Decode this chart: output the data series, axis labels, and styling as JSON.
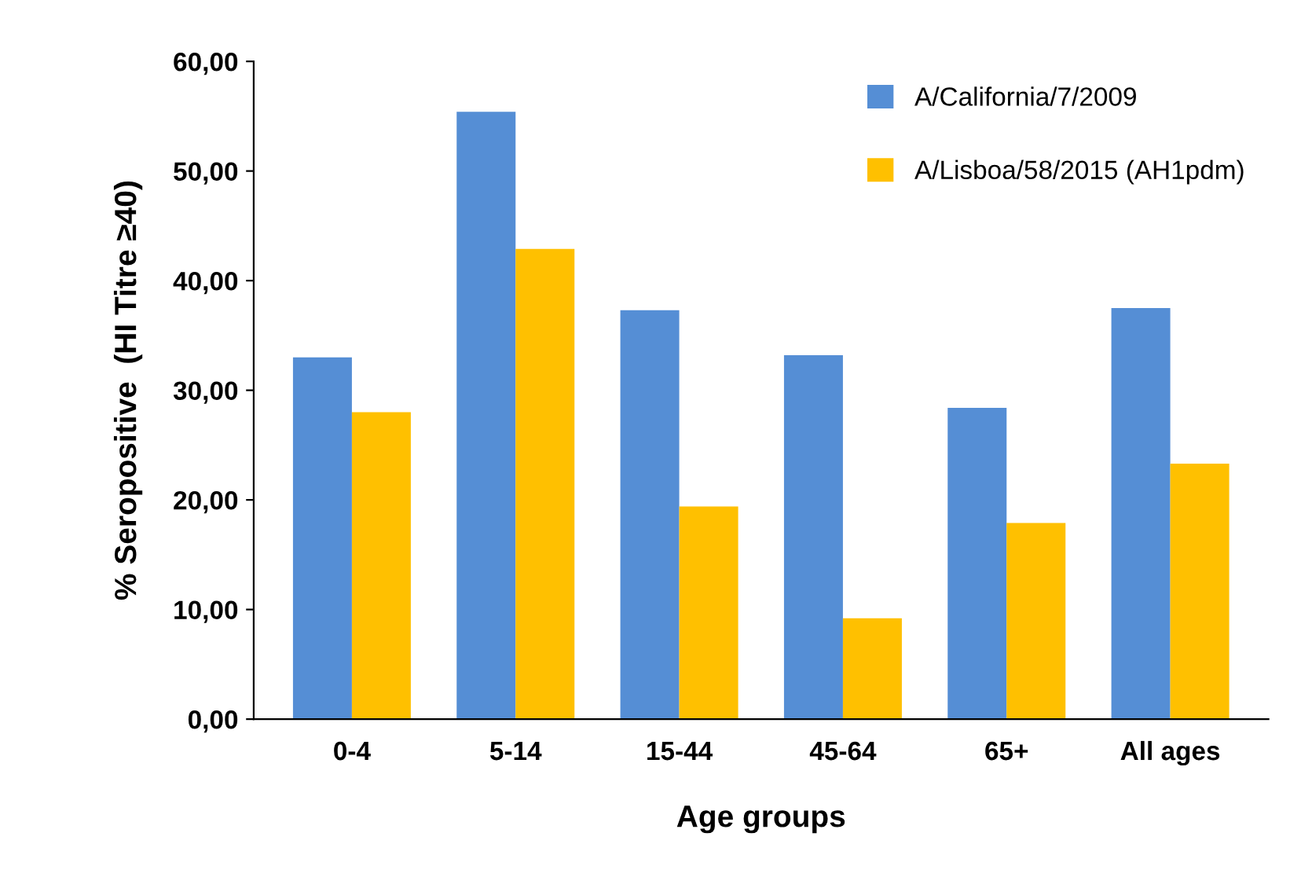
{
  "chart_data": {
    "type": "bar",
    "xlabel": "Age groups",
    "ylabel": "% Seropositive  (HI Titre ≥40)",
    "categories": [
      "0-4",
      "5-14",
      "15-44",
      "45-64",
      "65+",
      "All ages"
    ],
    "series": [
      {
        "name": "A/California/7/2009",
        "color": "#558ed5",
        "values": [
          33.0,
          55.4,
          37.3,
          33.2,
          28.4,
          37.5
        ]
      },
      {
        "name": "A/Lisboa/58/2015 (AH1pdm)",
        "color": "#ffc000",
        "values": [
          28.0,
          42.9,
          19.4,
          9.2,
          17.9,
          23.3
        ]
      }
    ],
    "ylim": [
      0,
      60
    ],
    "yticks": [
      {
        "value": 0,
        "label": "0,00"
      },
      {
        "value": 10,
        "label": "10,00"
      },
      {
        "value": 20,
        "label": "20,00"
      },
      {
        "value": 30,
        "label": "30,00"
      },
      {
        "value": 40,
        "label": "40,00"
      },
      {
        "value": 50,
        "label": "50,00"
      },
      {
        "value": 60,
        "label": "60,00"
      }
    ],
    "grid": false,
    "legend": "top right"
  }
}
